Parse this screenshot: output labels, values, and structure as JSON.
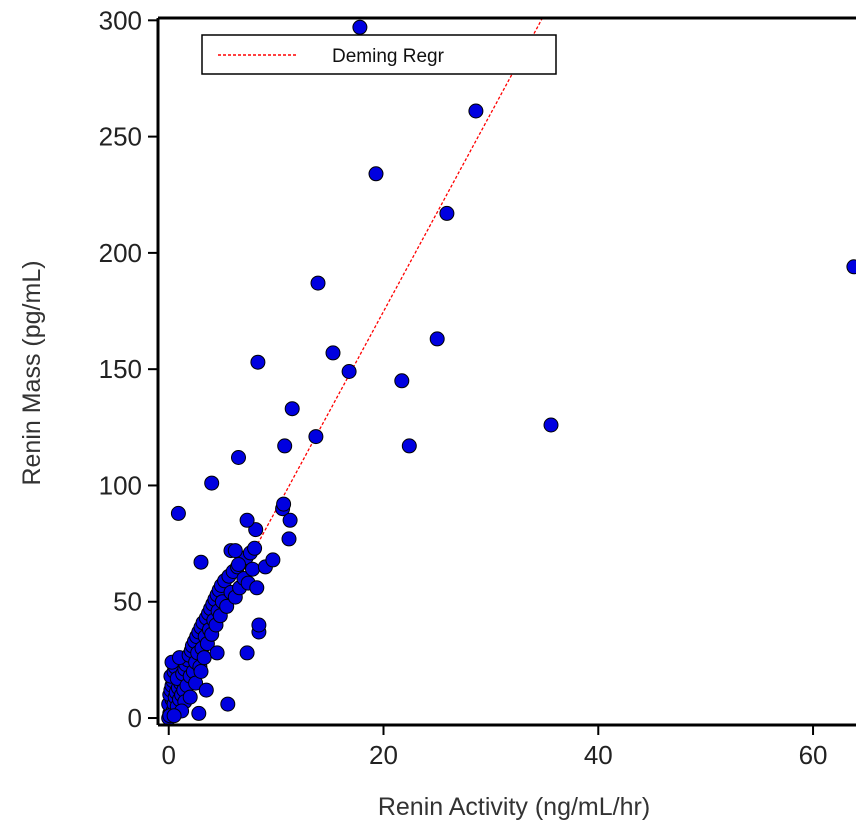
{
  "chart_data": {
    "type": "scatter",
    "title": "",
    "xlabel": "Renin Activity (ng/mL/hr)",
    "ylabel": "Renin Mass (pg/mL)",
    "xlim": [
      -1,
      64
    ],
    "ylim": [
      -3,
      301
    ],
    "x_ticks": [
      0,
      20,
      40,
      60
    ],
    "y_ticks": [
      0,
      50,
      100,
      150,
      200,
      250,
      300
    ],
    "grid": false,
    "legend": {
      "position": "top-left",
      "entries": [
        "Deming Regr"
      ]
    },
    "colors": {
      "points": "#0000e0",
      "point_edge": "#000000",
      "regression": "#ff0000",
      "axis": "#000000"
    },
    "regression": {
      "name": "Deming Regr",
      "x": [
        6.3,
        34.8
      ],
      "y": [
        58,
        301
      ]
    },
    "series": [
      {
        "points": [
          [
            0.0,
            0
          ],
          [
            0.1,
            2
          ],
          [
            0.2,
            4
          ],
          [
            0.0,
            6
          ],
          [
            0.3,
            8
          ],
          [
            0.1,
            10
          ],
          [
            0.4,
            3
          ],
          [
            0.2,
            12
          ],
          [
            0.5,
            6
          ],
          [
            0.3,
            14
          ],
          [
            0.6,
            9
          ],
          [
            0.1,
            1
          ],
          [
            0.7,
            11
          ],
          [
            0.4,
            16
          ],
          [
            0.8,
            5
          ],
          [
            0.2,
            18
          ],
          [
            0.9,
            13
          ],
          [
            0.5,
            20
          ],
          [
            1.0,
            8
          ],
          [
            0.6,
            22
          ],
          [
            1.1,
            15
          ],
          [
            0.3,
            24
          ],
          [
            1.2,
            10
          ],
          [
            0.8,
            17
          ],
          [
            1.3,
            19
          ],
          [
            1.4,
            12
          ],
          [
            1.5,
            21
          ],
          [
            1.6,
            23
          ],
          [
            1.7,
            14
          ],
          [
            1.8,
            25
          ],
          [
            1.0,
            26
          ],
          [
            1.9,
            27
          ],
          [
            2.0,
            18
          ],
          [
            2.1,
            29
          ],
          [
            2.2,
            31
          ],
          [
            2.3,
            20
          ],
          [
            2.4,
            33
          ],
          [
            2.5,
            24
          ],
          [
            2.6,
            35
          ],
          [
            2.7,
            28
          ],
          [
            2.8,
            37
          ],
          [
            2.9,
            22
          ],
          [
            3.0,
            39
          ],
          [
            3.1,
            30
          ],
          [
            3.2,
            41
          ],
          [
            3.3,
            26
          ],
          [
            3.4,
            35
          ],
          [
            3.5,
            43
          ],
          [
            3.6,
            32
          ],
          [
            3.7,
            45
          ],
          [
            3.8,
            38
          ],
          [
            3.9,
            47
          ],
          [
            4.0,
            36
          ],
          [
            4.1,
            49
          ],
          [
            4.2,
            42
          ],
          [
            4.3,
            51
          ],
          [
            4.4,
            40
          ],
          [
            4.5,
            53
          ],
          [
            4.6,
            46
          ],
          [
            4.7,
            55
          ],
          [
            4.8,
            44
          ],
          [
            4.9,
            57
          ],
          [
            5.0,
            50
          ],
          [
            5.2,
            59
          ],
          [
            5.4,
            48
          ],
          [
            5.6,
            61
          ],
          [
            5.8,
            54
          ],
          [
            6.0,
            63
          ],
          [
            6.2,
            52
          ],
          [
            6.4,
            65
          ],
          [
            6.6,
            56
          ],
          [
            6.8,
            67
          ],
          [
            7.0,
            60
          ],
          [
            7.2,
            69
          ],
          [
            7.4,
            58
          ],
          [
            7.6,
            71
          ],
          [
            7.8,
            64
          ],
          [
            8.0,
            73
          ],
          [
            2.5,
            15
          ],
          [
            1.5,
            7
          ],
          [
            3.5,
            12
          ],
          [
            2.0,
            9
          ],
          [
            1.2,
            3
          ],
          [
            0.5,
            1
          ],
          [
            4.5,
            28
          ],
          [
            3.0,
            20
          ],
          [
            2.8,
            2
          ],
          [
            5.5,
            6
          ],
          [
            7.3,
            28
          ],
          [
            8.4,
            37
          ],
          [
            8.4,
            40
          ],
          [
            8.2,
            56
          ],
          [
            9.0,
            65
          ],
          [
            9.7,
            68
          ],
          [
            10.6,
            90
          ],
          [
            11.2,
            77
          ],
          [
            11.3,
            85
          ],
          [
            8.1,
            81
          ],
          [
            7.3,
            85
          ],
          [
            5.8,
            72
          ],
          [
            6.5,
            66
          ],
          [
            6.2,
            72
          ],
          [
            3.0,
            67
          ],
          [
            0.9,
            88
          ],
          [
            4.0,
            101
          ],
          [
            6.5,
            112
          ],
          [
            10.7,
            92
          ],
          [
            10.8,
            117
          ],
          [
            8.3,
            153
          ],
          [
            11.5,
            133
          ],
          [
            13.7,
            121
          ],
          [
            13.9,
            187
          ],
          [
            15.3,
            157
          ],
          [
            16.8,
            149
          ],
          [
            19.3,
            234
          ],
          [
            21.7,
            145
          ],
          [
            22.4,
            117
          ],
          [
            25.0,
            163
          ],
          [
            25.9,
            217
          ],
          [
            28.6,
            261
          ],
          [
            35.6,
            126
          ],
          [
            17.8,
            297
          ],
          [
            63.8,
            194
          ]
        ]
      }
    ]
  }
}
